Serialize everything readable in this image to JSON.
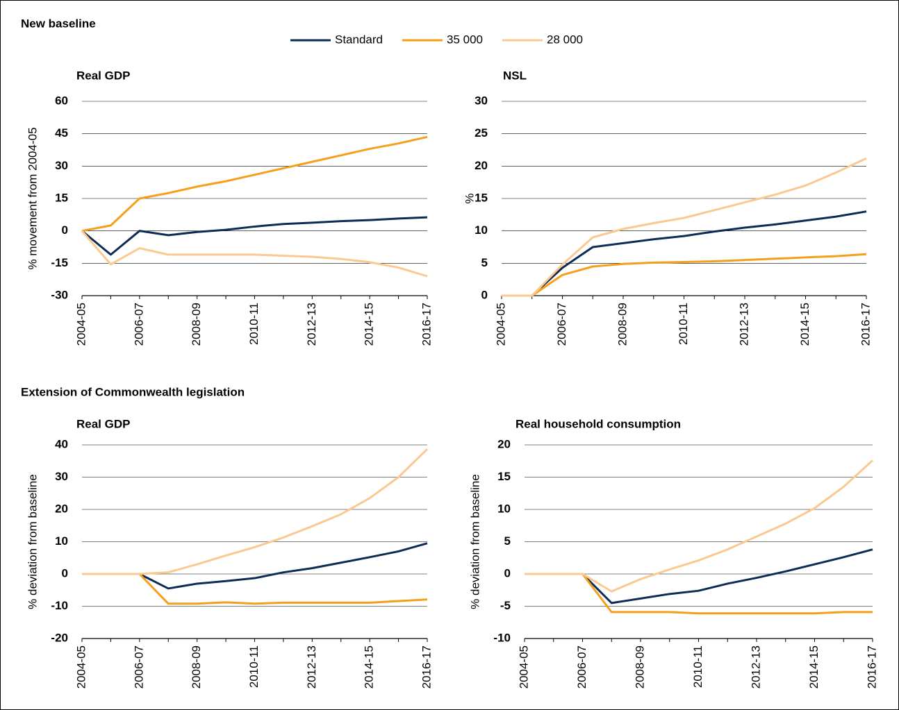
{
  "sections": [
    "New baseline",
    "Extension of Commonwealth legislation"
  ],
  "chart_data": [
    {
      "type": "line",
      "section": 0,
      "title": "Real GDP",
      "ylabel": "% movement from 2004-05",
      "categories": [
        "2004-05",
        null,
        "2006-07",
        null,
        "2008-09",
        null,
        "2010-11",
        null,
        "2012-13",
        null,
        "2014-15",
        null,
        "2016-17"
      ],
      "ylim": [
        -30,
        60
      ],
      "yticks": [
        -30,
        -15,
        0,
        15,
        30,
        45,
        60
      ],
      "grid": true,
      "legend": "top",
      "series": [
        {
          "name": "Standard",
          "color": "#0d2c54",
          "values": [
            0,
            -11,
            0,
            -2,
            -0.5,
            0.5,
            2,
            3.2,
            3.8,
            4.5,
            5,
            5.7,
            6.3
          ]
        },
        {
          "name": "35 000",
          "color": "#f59f1b",
          "values": [
            0,
            2.5,
            15,
            17.5,
            20.5,
            23,
            26,
            29,
            32,
            35,
            38,
            40.5,
            43.5
          ]
        },
        {
          "name": "28 000",
          "color": "#fbc891",
          "values": [
            0,
            -15.5,
            -8,
            -11,
            -11,
            -11,
            -11,
            -11.5,
            -12,
            -13,
            -14.5,
            -17,
            -21
          ]
        }
      ]
    },
    {
      "type": "line",
      "section": 0,
      "title": "NSL",
      "ylabel": "%",
      "categories": [
        "2004-05",
        null,
        "2006-07",
        null,
        "2008-09",
        null,
        "2010-11",
        null,
        "2012-13",
        null,
        "2014-15",
        null,
        "2016-17"
      ],
      "ylim": [
        0,
        30
      ],
      "yticks": [
        0,
        5,
        10,
        15,
        20,
        25,
        30
      ],
      "grid": true,
      "series": [
        {
          "name": "Standard",
          "color": "#0d2c54",
          "values": [
            0,
            0,
            4.3,
            7.5,
            8.1,
            8.7,
            9.2,
            9.9,
            10.5,
            11,
            11.6,
            12.2,
            13
          ]
        },
        {
          "name": "35 000",
          "color": "#f59f1b",
          "values": [
            0,
            0,
            3.2,
            4.5,
            4.9,
            5.1,
            5.2,
            5.3,
            5.5,
            5.7,
            5.9,
            6.1,
            6.4
          ]
        },
        {
          "name": "28 000",
          "color": "#fbc891",
          "values": [
            0,
            0,
            4.8,
            9,
            10.3,
            11.2,
            12,
            13.2,
            14.4,
            15.6,
            17,
            19,
            21.2
          ]
        }
      ]
    },
    {
      "type": "line",
      "section": 1,
      "title": "Real GDP",
      "ylabel": "% deviation from baseline",
      "categories": [
        "2004-05",
        null,
        "2006-07",
        null,
        "2008-09",
        null,
        "2010-11",
        null,
        "2012-13",
        null,
        "2014-15",
        null,
        "2016-17"
      ],
      "ylim": [
        -20,
        40
      ],
      "yticks": [
        -20,
        -10,
        0,
        10,
        20,
        30,
        40
      ],
      "grid": true,
      "series": [
        {
          "name": "Standard",
          "color": "#0d2c54",
          "values": [
            0,
            0,
            0,
            -4.5,
            -3,
            -2.2,
            -1.3,
            0.5,
            1.8,
            3.5,
            5.2,
            7,
            9.5
          ]
        },
        {
          "name": "35 000",
          "color": "#f59f1b",
          "values": [
            0,
            0,
            0,
            -9.2,
            -9.2,
            -8.8,
            -9.2,
            -8.9,
            -8.9,
            -8.9,
            -8.9,
            -8.4,
            -7.9
          ]
        },
        {
          "name": "28 000",
          "color": "#fbc891",
          "values": [
            0,
            0,
            0,
            0.5,
            3,
            5.7,
            8.3,
            11.3,
            14.8,
            18.5,
            23.5,
            30,
            38.7
          ]
        }
      ]
    },
    {
      "type": "line",
      "section": 1,
      "title": "Real household consumption",
      "ylabel": "% deviation from baseline",
      "categories": [
        "2004-05",
        null,
        "2006-07",
        null,
        "2008-09",
        null,
        "2010-11",
        null,
        "2012-13",
        null,
        "2014-15",
        null,
        "2016-17"
      ],
      "ylim": [
        -10,
        20
      ],
      "yticks": [
        -10,
        -5,
        0,
        5,
        10,
        15,
        20
      ],
      "grid": true,
      "series": [
        {
          "name": "Standard",
          "color": "#0d2c54",
          "values": [
            0,
            0,
            0,
            -4.5,
            -3.8,
            -3.1,
            -2.6,
            -1.5,
            -0.6,
            0.4,
            1.5,
            2.6,
            3.8
          ]
        },
        {
          "name": "35 000",
          "color": "#f59f1b",
          "values": [
            0,
            0,
            0,
            -5.9,
            -5.9,
            -5.9,
            -6.1,
            -6.1,
            -6.1,
            -6.1,
            -6.1,
            -5.9,
            -5.9
          ]
        },
        {
          "name": "28 000",
          "color": "#fbc891",
          "values": [
            0,
            0,
            0,
            -2.7,
            -0.8,
            0.7,
            2.1,
            3.8,
            5.8,
            7.8,
            10.2,
            13.5,
            17.6
          ]
        }
      ]
    }
  ]
}
